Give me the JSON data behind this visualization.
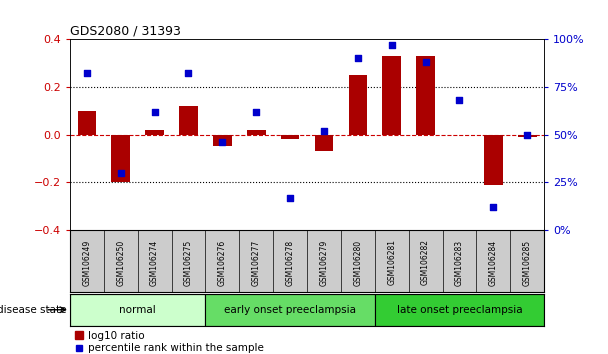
{
  "title": "GDS2080 / 31393",
  "samples": [
    "GSM106249",
    "GSM106250",
    "GSM106274",
    "GSM106275",
    "GSM106276",
    "GSM106277",
    "GSM106278",
    "GSM106279",
    "GSM106280",
    "GSM106281",
    "GSM106282",
    "GSM106283",
    "GSM106284",
    "GSM106285"
  ],
  "log10_ratio": [
    0.1,
    -0.2,
    0.02,
    0.12,
    -0.05,
    0.02,
    -0.02,
    -0.07,
    0.25,
    0.33,
    0.33,
    0.0,
    -0.21,
    -0.01
  ],
  "percentile_rank": [
    82,
    30,
    62,
    82,
    46,
    62,
    17,
    52,
    90,
    97,
    88,
    68,
    12,
    50
  ],
  "groups": [
    {
      "label": "normal",
      "start": 0,
      "end": 4,
      "color": "#ccffcc"
    },
    {
      "label": "early onset preeclampsia",
      "start": 4,
      "end": 9,
      "color": "#66dd66"
    },
    {
      "label": "late onset preeclampsia",
      "start": 9,
      "end": 14,
      "color": "#33cc33"
    }
  ],
  "ylim_left": [
    -0.4,
    0.4
  ],
  "ylim_right": [
    0,
    100
  ],
  "yticks_left": [
    -0.4,
    -0.2,
    0.0,
    0.2,
    0.4
  ],
  "yticks_right": [
    0,
    25,
    50,
    75,
    100
  ],
  "bar_color": "#aa0000",
  "dot_color": "#0000cc",
  "zero_line_color": "#cc0000",
  "dotted_line_color": "#000000",
  "legend_items": [
    "log10 ratio",
    "percentile rank within the sample"
  ],
  "legend_colors": [
    "#aa0000",
    "#0000cc"
  ],
  "disease_state_label": "disease state",
  "sample_band_color": "#cccccc",
  "sample_band_border": "#888888"
}
